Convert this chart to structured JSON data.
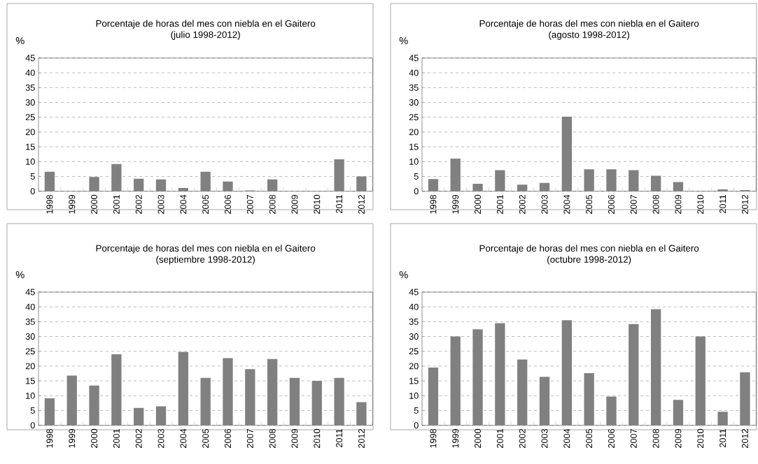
{
  "chart_data": [
    {
      "type": "bar",
      "title": "Porcentaje de horas del mes con niebla en el Gaitero",
      "subtitle": "(julio 1998-2012)",
      "ylabel": "%",
      "categories": [
        "1998",
        "1999",
        "2000",
        "2001",
        "2002",
        "2003",
        "2004",
        "2005",
        "2006",
        "2007",
        "2008",
        "2009",
        "2010",
        "2011",
        "2012"
      ],
      "values": [
        6.6,
        0,
        4.8,
        9.2,
        4.2,
        4.0,
        1.1,
        6.6,
        3.3,
        0.3,
        4.0,
        0,
        0,
        10.8,
        5.0
      ],
      "color": "#808080",
      "ylim": [
        0,
        45
      ],
      "yticks": [
        0,
        5,
        10,
        15,
        20,
        25,
        30,
        35,
        40,
        45
      ],
      "grid": "y"
    },
    {
      "type": "bar",
      "title": "Porcentaje de horas del mes con niebla en el Gaitero",
      "subtitle": "(agosto 1998-2012)",
      "ylabel": "%",
      "categories": [
        "1998",
        "1999",
        "2000",
        "2001",
        "2002",
        "2003",
        "2004",
        "2005",
        "2006",
        "2007",
        "2008",
        "2009",
        "2010",
        "2011",
        "2012"
      ],
      "values": [
        4.1,
        11.0,
        2.5,
        7.1,
        2.2,
        2.8,
        25.2,
        7.4,
        7.4,
        7.1,
        5.2,
        3.1,
        0,
        0.6,
        0.4
      ],
      "color": "#808080",
      "ylim": [
        0,
        45
      ],
      "yticks": [
        0,
        5,
        10,
        15,
        20,
        25,
        30,
        35,
        40,
        45
      ],
      "grid": "y"
    },
    {
      "type": "bar",
      "title": "Porcentaje de horas del mes con niebla en el Gaitero",
      "subtitle": "(septiembre 1998-2012)",
      "ylabel": "%",
      "categories": [
        "1998",
        "1999",
        "2000",
        "2001",
        "2002",
        "2003",
        "2004",
        "2005",
        "2006",
        "2007",
        "2008",
        "2009",
        "2010",
        "2011",
        "2012"
      ],
      "values": [
        9.1,
        16.8,
        13.4,
        24.0,
        5.9,
        6.4,
        24.8,
        16.0,
        22.7,
        19.0,
        22.4,
        16.0,
        15.0,
        16.0,
        7.8
      ],
      "color": "#808080",
      "ylim": [
        0,
        45
      ],
      "yticks": [
        0,
        5,
        10,
        15,
        20,
        25,
        30,
        35,
        40,
        45
      ],
      "grid": "y"
    },
    {
      "type": "bar",
      "title": "Porcentaje de horas del mes con niebla en el Gaitero",
      "subtitle": "(octubre 1998-2012)",
      "ylabel": "%",
      "categories": [
        "1998",
        "1999",
        "2000",
        "2001",
        "2002",
        "2003",
        "2004",
        "2005",
        "2006",
        "2007",
        "2008",
        "2009",
        "2010",
        "2011",
        "2012"
      ],
      "values": [
        19.5,
        30.0,
        32.4,
        34.5,
        22.2,
        16.4,
        35.5,
        17.6,
        9.7,
        34.2,
        39.2,
        8.6,
        30.0,
        4.6,
        17.9
      ],
      "color": "#808080",
      "ylim": [
        0,
        45
      ],
      "yticks": [
        0,
        5,
        10,
        15,
        20,
        25,
        30,
        35,
        40,
        45
      ],
      "grid": "y"
    }
  ]
}
